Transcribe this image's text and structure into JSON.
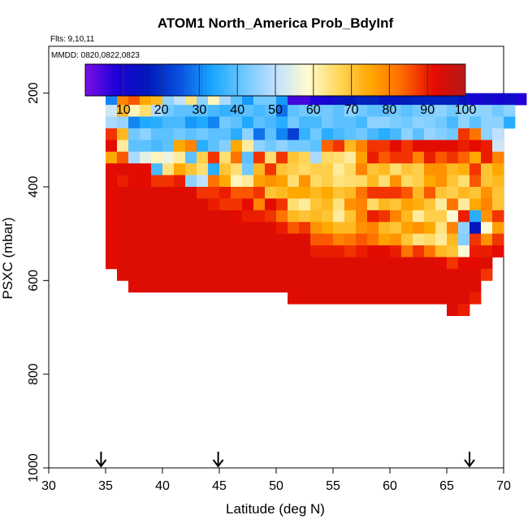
{
  "chart_data": {
    "type": "heatmap",
    "title": "ATOM1 North_America Prob_BdyInf",
    "flights_label": "Flts: 9,10,11",
    "dates_label": "MMDD: 0820,0822,0823",
    "xlabel": "Latitude (deg N)",
    "ylabel": "PSXC (mbar)",
    "xlim": [
      30,
      70
    ],
    "ylim": [
      1000,
      100
    ],
    "xticks": [
      30,
      35,
      40,
      45,
      50,
      55,
      60,
      65,
      70
    ],
    "yticks": [
      200,
      400,
      600,
      800,
      1000
    ],
    "colorbar": {
      "range": [
        0,
        100
      ],
      "ticks": [
        10,
        20,
        30,
        40,
        50,
        60,
        70,
        80,
        90,
        100
      ],
      "colors": [
        "#7a10e6",
        "#1c00d8",
        "#001ab8",
        "#0a52e0",
        "#18a6ff",
        "#6ec8ff",
        "#bfe0ff",
        "#fffbd2",
        "#ffd75a",
        "#ffa800",
        "#ff6a00",
        "#e60a00",
        "#b51a1a"
      ]
    },
    "arrows_latitude": [
      34.6,
      44.9,
      67.0
    ],
    "cell_size": {
      "lat": 1.0,
      "psxc": 25
    },
    "values_layout": "columns are latitude bins starting at lat_start; each entry lists the first bin's center pressure then probabilities (%) in successive 25 mbar bins",
    "lat_start": 35,
    "columns": [
      [
        187.5,
        45,
        30,
        52,
        48,
        88,
        92,
        75,
        92,
        92,
        92,
        92,
        92,
        92,
        92,
        92,
        92
      ],
      [
        187.5,
        42,
        80,
        72,
        46,
        72,
        62,
        85,
        93,
        90,
        93,
        93,
        93,
        93,
        93,
        93,
        93,
        93
      ],
      [
        187.5,
        40,
        85,
        60,
        30,
        42,
        40,
        48,
        92,
        92,
        93,
        93,
        93,
        93,
        93,
        93,
        93,
        93,
        93
      ],
      [
        187.5,
        40,
        75,
        65,
        34,
        45,
        40,
        55,
        92,
        92,
        93,
        93,
        93,
        93,
        93,
        93,
        93,
        93,
        93
      ],
      [
        187.5,
        40,
        72,
        48,
        35,
        40,
        38,
        60,
        38,
        88,
        93,
        93,
        93,
        93,
        93,
        93,
        93,
        93,
        93
      ],
      [
        187.5,
        38,
        45,
        42,
        38,
        40,
        40,
        56,
        64,
        88,
        93,
        93,
        93,
        93,
        93,
        93,
        93,
        93,
        93
      ],
      [
        187.5,
        36,
        50,
        40,
        38,
        42,
        75,
        62,
        75,
        90,
        93,
        93,
        93,
        93,
        93,
        93,
        93,
        93,
        93
      ],
      [
        187.5,
        38,
        64,
        40,
        32,
        40,
        80,
        40,
        70,
        45,
        93,
        93,
        93,
        93,
        93,
        93,
        93,
        93,
        93
      ],
      [
        187.5,
        35,
        45,
        40,
        34,
        42,
        35,
        68,
        65,
        50,
        88,
        93,
        93,
        93,
        93,
        93,
        93,
        93,
        93
      ],
      [
        187.5,
        38,
        60,
        38,
        30,
        40,
        40,
        88,
        35,
        82,
        88,
        90,
        93,
        93,
        93,
        93,
        93,
        93,
        93
      ],
      [
        187.5,
        40,
        48,
        36,
        42,
        40,
        44,
        65,
        70,
        75,
        90,
        88,
        93,
        93,
        93,
        93,
        93,
        93,
        93
      ],
      [
        187.5,
        30,
        40,
        38,
        40,
        35,
        75,
        82,
        65,
        60,
        85,
        88,
        92,
        93,
        93,
        93,
        93,
        93,
        93
      ],
      [
        187.5,
        25,
        32,
        40,
        34,
        45,
        62,
        40,
        42,
        62,
        85,
        92,
        90,
        93,
        93,
        93,
        93,
        93,
        93
      ],
      [
        187.5,
        18,
        42,
        38,
        40,
        28,
        45,
        88,
        72,
        76,
        88,
        80,
        90,
        93,
        93,
        93,
        93,
        93,
        93
      ],
      [
        187.5,
        10,
        42,
        40,
        38,
        40,
        42,
        65,
        88,
        78,
        70,
        92,
        88,
        93,
        93,
        93,
        93,
        93,
        93
      ],
      [
        187.5,
        8,
        32,
        28,
        35,
        30,
        45,
        88,
        70,
        76,
        72,
        88,
        82,
        90,
        93,
        93,
        93,
        93,
        93
      ],
      [
        187.5,
        5,
        5,
        40,
        42,
        22,
        42,
        70,
        68,
        65,
        75,
        65,
        72,
        85,
        93,
        93,
        93,
        93,
        93,
        93
      ],
      [
        212.5,
        5,
        42,
        38,
        36,
        42,
        67,
        66,
        78,
        75,
        62,
        70,
        88,
        93,
        93,
        93,
        93,
        93,
        93
      ],
      [
        212.5,
        8,
        42,
        38,
        42,
        40,
        48,
        68,
        66,
        72,
        70,
        72,
        78,
        85,
        90,
        93,
        93,
        93,
        93
      ],
      [
        212.5,
        10,
        42,
        42,
        35,
        84,
        66,
        68,
        68,
        75,
        72,
        70,
        75,
        85,
        90,
        93,
        93,
        93,
        93
      ],
      [
        212.5,
        14,
        40,
        40,
        38,
        88,
        65,
        62,
        64,
        70,
        64,
        62,
        72,
        80,
        90,
        93,
        93,
        93,
        93
      ],
      [
        212.5,
        16,
        45,
        40,
        40,
        72,
        62,
        66,
        65,
        72,
        78,
        70,
        72,
        82,
        88,
        93,
        93,
        93,
        93
      ],
      [
        212.5,
        18,
        42,
        38,
        42,
        80,
        76,
        80,
        66,
        82,
        80,
        80,
        78,
        85,
        90,
        93,
        93,
        93,
        93
      ],
      [
        212.5,
        18,
        40,
        45,
        38,
        88,
        90,
        70,
        72,
        88,
        66,
        90,
        80,
        82,
        92,
        93,
        93,
        93,
        93
      ],
      [
        212.5,
        15,
        40,
        45,
        35,
        88,
        85,
        72,
        65,
        88,
        72,
        88,
        72,
        76,
        92,
        93,
        93,
        93,
        93
      ],
      [
        212.5,
        15,
        42,
        43,
        38,
        92,
        88,
        65,
        78,
        88,
        70,
        80,
        70,
        78,
        90,
        93,
        93,
        93,
        93
      ],
      [
        212.5,
        17,
        40,
        42,
        45,
        88,
        88,
        70,
        66,
        85,
        76,
        72,
        76,
        70,
        82,
        93,
        93,
        93,
        93
      ],
      [
        212.5,
        18,
        42,
        45,
        40,
        92,
        80,
        68,
        68,
        72,
        74,
        62,
        78,
        64,
        88,
        93,
        93,
        93,
        93
      ],
      [
        212.5,
        18,
        43,
        44,
        46,
        92,
        90,
        78,
        75,
        85,
        70,
        68,
        75,
        66,
        82,
        93,
        93,
        93,
        93
      ],
      [
        212.5,
        18,
        45,
        42,
        44,
        92,
        85,
        78,
        78,
        70,
        62,
        68,
        64,
        62,
        72,
        92,
        93,
        93,
        93
      ],
      [
        212.5,
        18,
        42,
        38,
        42,
        92,
        88,
        72,
        70,
        68,
        82,
        58,
        80,
        72,
        70,
        88,
        93,
        93,
        93,
        93
      ],
      [
        212.5,
        14,
        45,
        45,
        88,
        90,
        84,
        74,
        65,
        72,
        62,
        90,
        45,
        44,
        58,
        92,
        93,
        93,
        93,
        90
      ],
      [
        212.5,
        10,
        45,
        40,
        82,
        92,
        75,
        88,
        85,
        70,
        75,
        35,
        15,
        88,
        90,
        92,
        93,
        93,
        90
      ],
      [
        212.5,
        12,
        45,
        45,
        45,
        90,
        90,
        70,
        70,
        78,
        80,
        78,
        58,
        78,
        90,
        93,
        88
      ],
      [
        212.5,
        10,
        42,
        45,
        50,
        52,
        80,
        75,
        72,
        70,
        70,
        88,
        76,
        88,
        92
      ],
      [
        212.5,
        12,
        45,
        35
      ],
      [
        212.5,
        8
      ]
    ]
  }
}
